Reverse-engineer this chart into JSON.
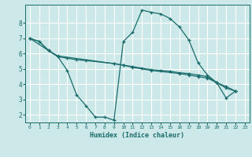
{
  "background_color": "#cce8e8",
  "grid_color": "#b0d8d8",
  "line_color": "#1a6b6b",
  "xlabel": "Humidex (Indice chaleur)",
  "xlim": [
    -0.5,
    23.5
  ],
  "ylim": [
    1.5,
    9.2
  ],
  "yticks": [
    2,
    3,
    4,
    5,
    6,
    7,
    8
  ],
  "xticks": [
    0,
    1,
    2,
    3,
    4,
    5,
    6,
    7,
    8,
    9,
    10,
    11,
    12,
    13,
    14,
    15,
    16,
    17,
    18,
    19,
    20,
    21,
    22,
    23
  ],
  "line1_x": [
    0,
    1,
    2,
    3,
    4,
    5,
    6,
    7,
    8,
    9,
    10,
    11,
    12,
    13,
    14,
    15,
    16,
    17,
    18,
    19,
    20,
    21,
    22
  ],
  "line1_y": [
    7.0,
    6.8,
    6.2,
    5.8,
    4.9,
    3.3,
    2.6,
    1.85,
    1.85,
    1.65,
    6.8,
    7.4,
    8.85,
    8.7,
    8.6,
    8.3,
    7.75,
    6.9,
    5.4,
    4.6,
    4.1,
    3.1,
    3.55
  ],
  "line2_x": [
    0,
    1,
    2,
    3,
    4,
    5,
    6,
    9,
    10,
    11,
    12,
    13,
    14,
    15,
    16,
    17,
    18,
    19,
    20,
    21,
    22
  ],
  "line2_y": [
    7.0,
    6.8,
    6.2,
    5.8,
    5.7,
    5.6,
    5.55,
    5.35,
    5.25,
    5.15,
    5.05,
    4.95,
    4.9,
    4.85,
    4.75,
    4.7,
    4.6,
    4.5,
    4.1,
    3.85,
    3.55
  ],
  "line3_x": [
    0,
    2,
    3,
    9,
    10,
    11,
    13,
    16,
    17,
    18,
    19,
    20,
    21,
    22
  ],
  "line3_y": [
    7.0,
    6.2,
    5.85,
    5.35,
    5.25,
    5.1,
    4.9,
    4.7,
    4.6,
    4.5,
    4.4,
    4.1,
    3.75,
    3.55
  ]
}
